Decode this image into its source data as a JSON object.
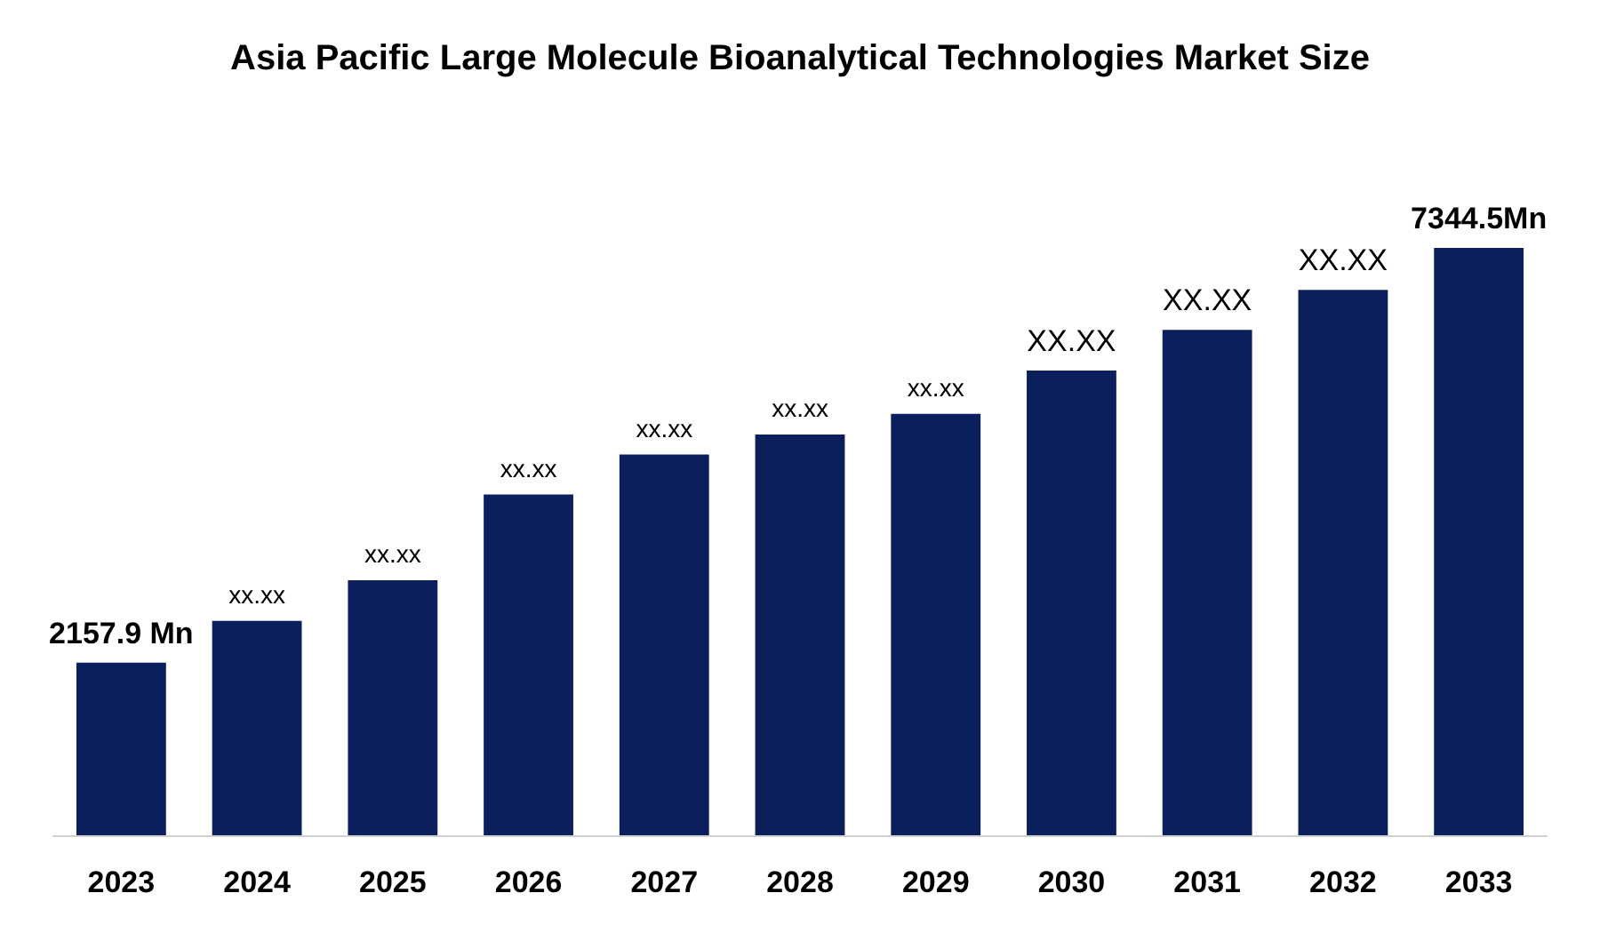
{
  "chart_data": {
    "type": "bar",
    "title": "Asia Pacific Large Molecule Bioanalytical Technologies Market Size",
    "categories": [
      "2023",
      "2024",
      "2025",
      "2026",
      "2027",
      "2028",
      "2029",
      "2030",
      "2031",
      "2032",
      "2033"
    ],
    "values": [
      2157.9,
      2680,
      3190,
      4260,
      4760,
      5010,
      5270,
      5810,
      6320,
      6820,
      7344.5
    ],
    "value_labels": [
      "2157.9 Mn",
      "xx.xx",
      "xx.xx",
      "xx.xx",
      "xx.xx",
      "xx.xx",
      "xx.xx",
      "XX.XX",
      "XX.XX",
      "XX.XX",
      "7344.5Mn"
    ],
    "color": "#0b1f5c",
    "grid": false
  }
}
